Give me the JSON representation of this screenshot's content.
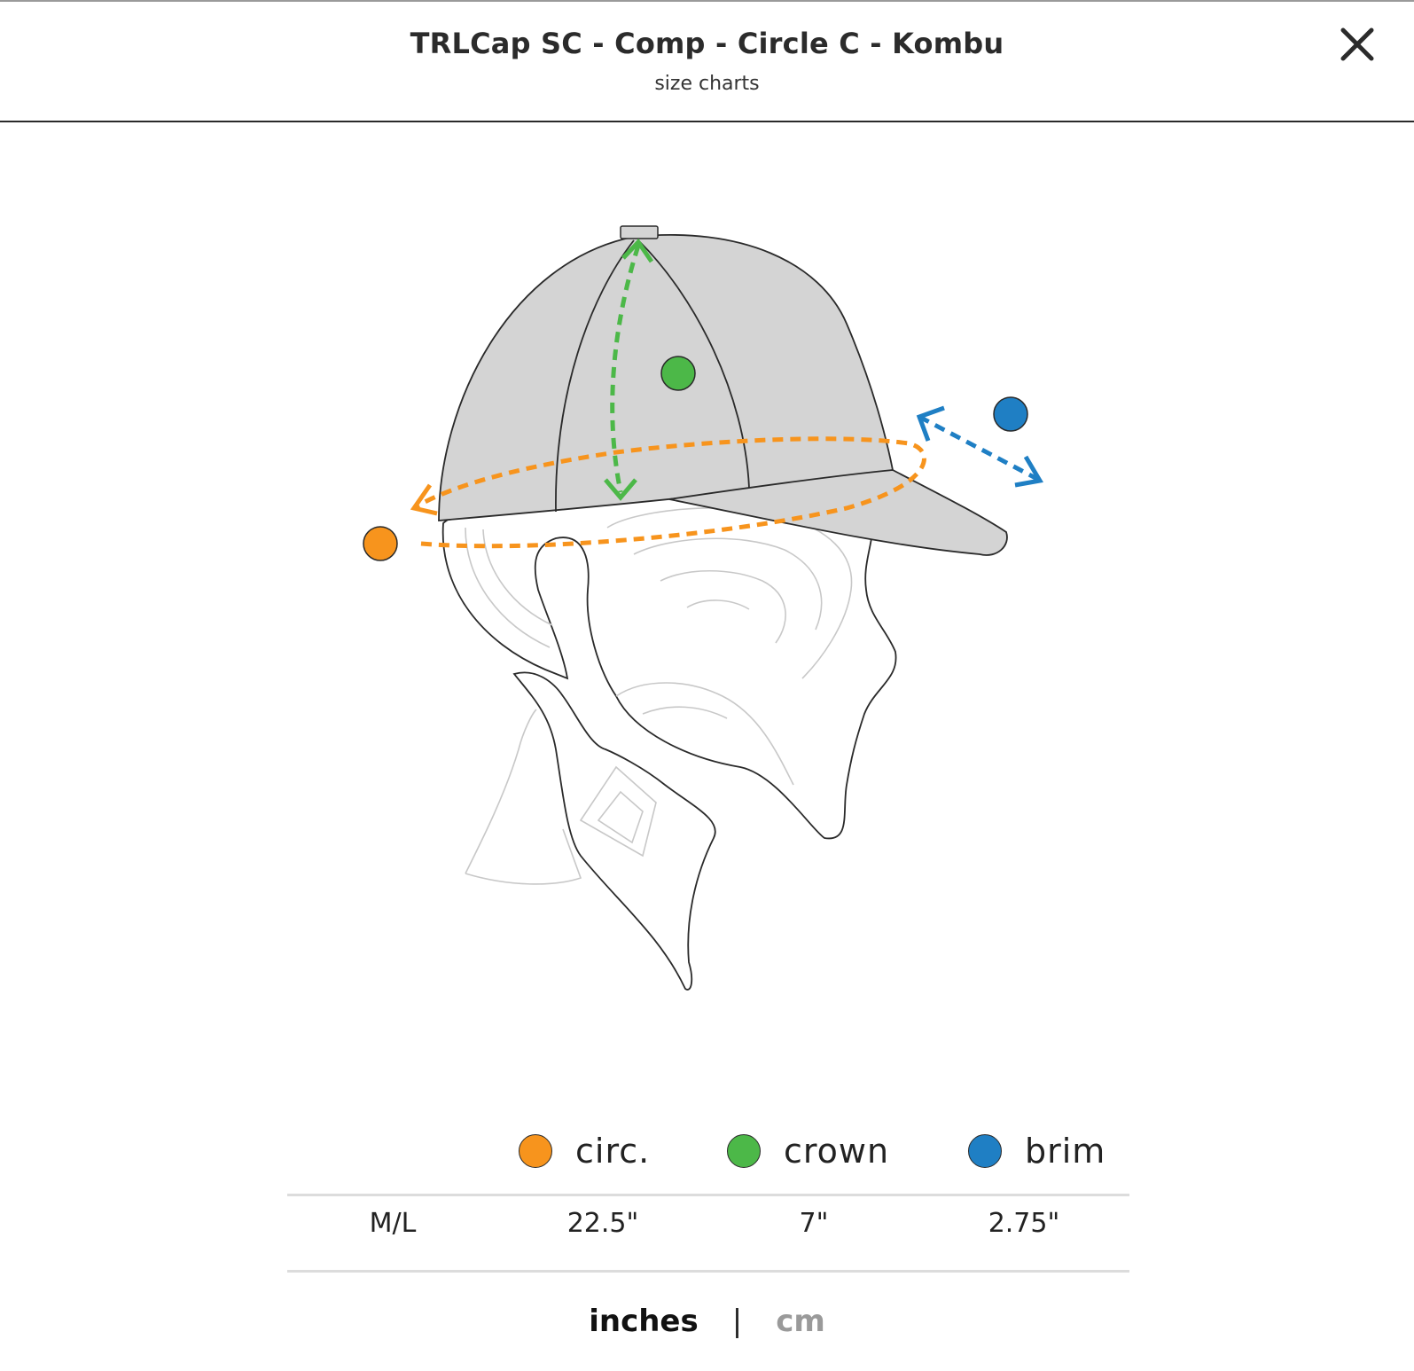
{
  "modal": {
    "title": "TRLCap SC - Comp - Circle C - Kombu",
    "subtitle": "size charts",
    "close_icon": "close-icon"
  },
  "colors": {
    "circ": "#f7941d",
    "crown": "#4cb848",
    "brim": "#1f7fc4"
  },
  "legend": [
    {
      "key": "circ",
      "label": "circ."
    },
    {
      "key": "crown",
      "label": "crown"
    },
    {
      "key": "brim",
      "label": "brim"
    }
  ],
  "sizes": [
    {
      "size": "M/L",
      "circ": "22.5\"",
      "crown": "7\"",
      "brim": "2.75\""
    }
  ],
  "units": {
    "active": "inches",
    "separator": "|",
    "inactive": "cm"
  }
}
